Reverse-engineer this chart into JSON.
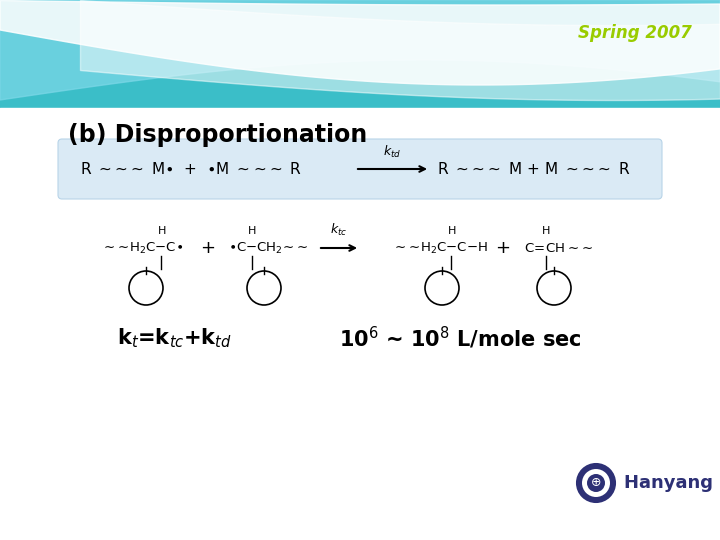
{
  "title": "(b) Disproportionation",
  "spring_text": "Spring 2007",
  "spring_color": "#99cc00",
  "background_color": "#ffffff",
  "box_color": "#daeaf5",
  "box_edge_color": "#b8d4e8",
  "hanyang_text": "Hanyang Univ.",
  "hanyang_color": "#2d3075",
  "title_fontsize": 17,
  "spring_fontsize": 12,
  "rate_fontsize": 15,
  "kt_fontsize": 15,
  "hanyang_fontsize": 13,
  "wave_teal": "#3bbec8",
  "wave_light": "#7dd8e8",
  "wave_white": "#c8eef5"
}
